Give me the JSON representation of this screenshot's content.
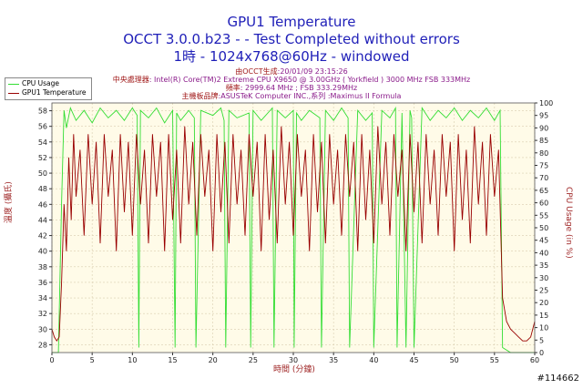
{
  "header": {
    "title_line1": "GPU1 Temperature",
    "title_line2": "OCCT 3.0.0.b23 -  - Test Completed without errors",
    "title_line3": "1時 - 1024x768@60Hz - windowed"
  },
  "info": {
    "generated_label": "由OCCT生成",
    "generated_value": ":20/01/09 23:15:26",
    "cpu_label": "中央處理器",
    "cpu_value": ": Intel(R) Core(TM)2 Extreme CPU X9650 @ 3.00GHz ( Yorkfield ) 3000 MHz FSB 333MHz",
    "freq_label": "頻率",
    "freq_value": ": 2999.64 MHz ; FSB 333.29MHz",
    "board_label": "主機板品牌",
    "board_value": ":ASUSTeK Computer INC.,系列 :Maximus II Formula"
  },
  "watermark": "#114662",
  "colors": {
    "cpu_usage": "#33dd33",
    "gpu_temp": "#990000",
    "plot_bg": "#fffbe8",
    "grid": "#d9cdb0"
  },
  "chart_data": {
    "type": "line",
    "xlabel": "時間 (分鐘)",
    "ylabel": "溫度 (攝氏)",
    "y2label": "CPU Usage (in %)",
    "xlim": [
      0,
      60
    ],
    "ylim": [
      27,
      59
    ],
    "y2lim": [
      0,
      100
    ],
    "x_ticks": [
      0,
      5,
      10,
      15,
      20,
      25,
      30,
      35,
      40,
      45,
      50,
      55,
      60
    ],
    "y_ticks": [
      28,
      30,
      32,
      34,
      36,
      38,
      40,
      42,
      44,
      46,
      48,
      50,
      52,
      54,
      56,
      58
    ],
    "y2_ticks": [
      0,
      5,
      10,
      15,
      20,
      25,
      30,
      35,
      40,
      45,
      50,
      55,
      60,
      65,
      70,
      75,
      80,
      85,
      90,
      95,
      100
    ],
    "grid": true,
    "legend_position": "top-left",
    "series": [
      {
        "name": "CPU Usage",
        "axis": "right",
        "x": [
          0,
          0.8,
          1.2,
          1.5,
          1.8,
          2.3,
          3,
          4,
          5,
          6,
          7,
          8,
          9,
          10,
          10.6,
          10.8,
          11,
          12,
          13,
          14,
          15,
          15.3,
          15.5,
          16,
          17,
          17.7,
          17.9,
          18.5,
          20,
          21,
          21.4,
          21.6,
          22,
          23,
          24.5,
          24.7,
          25,
          26,
          27.4,
          27.6,
          28,
          29,
          30,
          30.1,
          30.4,
          31,
          32,
          33.3,
          33.5,
          34,
          35,
          36,
          36.8,
          37,
          38,
          39,
          39.8,
          40,
          41,
          42,
          42.7,
          42.9,
          43.5,
          44,
          44.5,
          44.7,
          45,
          46,
          47,
          48,
          49,
          50,
          51,
          52,
          53,
          54,
          55,
          55.7,
          56,
          57,
          58,
          59,
          60
        ],
        "values": [
          0,
          0,
          60,
          97,
          90,
          98,
          93,
          97,
          92,
          98,
          94,
          97,
          93,
          98,
          95,
          2,
          97,
          94,
          98,
          92,
          97,
          2,
          96,
          93,
          97,
          94,
          2,
          97,
          95,
          98,
          93,
          2,
          97,
          94,
          96,
          2,
          97,
          93,
          98,
          2,
          97,
          94,
          97,
          2,
          96,
          93,
          97,
          94,
          2,
          97,
          93,
          98,
          94,
          2,
          97,
          93,
          96,
          2,
          97,
          94,
          98,
          2,
          96,
          2,
          97,
          94,
          2,
          98,
          93,
          97,
          94,
          98,
          93,
          97,
          94,
          98,
          93,
          97,
          2,
          0,
          0,
          0,
          0
        ]
      },
      {
        "name": "GPU1 Temperature",
        "axis": "left",
        "x": [
          0,
          0.3,
          0.6,
          0.9,
          1.2,
          1.5,
          1.8,
          2.1,
          2.4,
          2.7,
          3,
          3.5,
          4,
          4.5,
          5,
          5.5,
          6,
          6.5,
          7,
          7.5,
          8,
          8.5,
          9,
          9.5,
          10,
          10.5,
          11,
          11.5,
          12,
          12.5,
          13,
          13.5,
          14,
          14.5,
          15,
          15.5,
          16,
          16.5,
          17,
          17.5,
          18,
          18.5,
          19,
          19.5,
          20,
          20.5,
          21,
          21.5,
          22,
          22.5,
          23,
          23.5,
          24,
          24.5,
          25,
          25.5,
          26,
          26.5,
          27,
          27.5,
          28,
          28.5,
          29,
          29.5,
          30,
          30.5,
          31,
          31.5,
          32,
          32.5,
          33,
          33.5,
          34,
          34.5,
          35,
          35.5,
          36,
          36.5,
          37,
          37.5,
          38,
          38.5,
          39,
          39.5,
          40,
          40.5,
          41,
          41.5,
          42,
          42.5,
          43,
          43.5,
          44,
          44.5,
          45,
          45.5,
          46,
          46.5,
          47,
          47.5,
          48,
          48.5,
          49,
          49.5,
          50,
          50.5,
          51,
          51.5,
          52,
          52.5,
          53,
          53.5,
          54,
          54.5,
          55,
          55.5,
          56,
          56.5,
          57,
          57.5,
          58,
          58.5,
          59,
          59.5,
          60
        ],
        "values": [
          30,
          29,
          28.5,
          29,
          36,
          46,
          40,
          52,
          44,
          55,
          47,
          53,
          42,
          55,
          46,
          54,
          41,
          55,
          47,
          53,
          40,
          55,
          45,
          54,
          42,
          55,
          46,
          53,
          41,
          55,
          47,
          54,
          40,
          55,
          44,
          53,
          41,
          56,
          46,
          54,
          42,
          55,
          47,
          53,
          40,
          55,
          45,
          54,
          41,
          55,
          46,
          53,
          42,
          55,
          47,
          54,
          40,
          55,
          44,
          53,
          41,
          56,
          46,
          54,
          42,
          55,
          47,
          53,
          40,
          55,
          45,
          54,
          41,
          55,
          46,
          53,
          42,
          55,
          47,
          54,
          40,
          55,
          44,
          53,
          41,
          56,
          46,
          54,
          42,
          55,
          47,
          53,
          40,
          55,
          45,
          54,
          41,
          55,
          46,
          53,
          42,
          55,
          47,
          54,
          40,
          55,
          44,
          53,
          41,
          56,
          46,
          54,
          42,
          55,
          47,
          53,
          34,
          31,
          30,
          29.5,
          29,
          28.5,
          28.5,
          29,
          31
        ]
      }
    ]
  }
}
